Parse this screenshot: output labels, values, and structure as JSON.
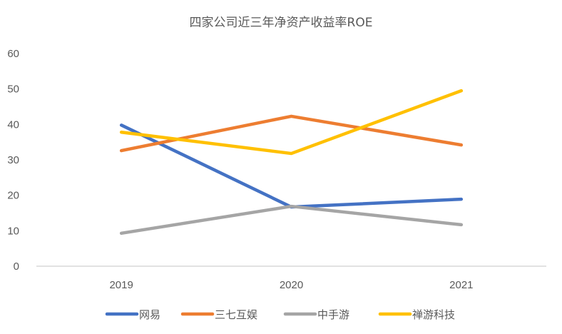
{
  "chart_data": {
    "type": "line",
    "title": "四家公司近三年净资产收益率ROE",
    "xlabel": "",
    "ylabel": "",
    "categories": [
      "2019",
      "2020",
      "2021"
    ],
    "ylim": [
      0,
      60
    ],
    "yticks": [
      "0",
      "10",
      "20",
      "30",
      "40",
      "50",
      "60"
    ],
    "grid": false,
    "legend_position": "bottom",
    "series": [
      {
        "name": "网易",
        "color": "#4472C4",
        "values": [
          39.8,
          16.7,
          18.9
        ]
      },
      {
        "name": "三七互娱",
        "color": "#ED7D31",
        "values": [
          32.6,
          42.3,
          34.2
        ]
      },
      {
        "name": "中手游",
        "color": "#A5A5A5",
        "values": [
          9.3,
          16.9,
          11.7
        ]
      },
      {
        "name": "禅游科技",
        "color": "#FFC000",
        "values": [
          37.8,
          31.8,
          49.5
        ]
      }
    ]
  }
}
